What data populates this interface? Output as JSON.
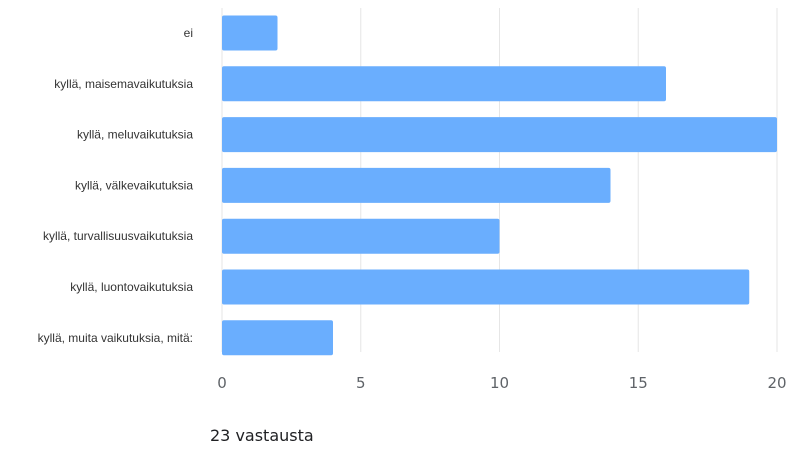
{
  "chart_data": {
    "type": "bar",
    "orientation": "horizontal",
    "categories": [
      "ei",
      "kyllä, maisemavaikutuksia",
      "kyllä, meluvaikutuksia",
      "kyllä, välkevaikutuksia",
      "kyllä, turvallisuusvaikutuksia",
      "kyllä, luontovaikutuksia",
      "kyllä, muita vaikutuksia, mitä:"
    ],
    "values": [
      2,
      16,
      20,
      14,
      10,
      19,
      4
    ],
    "xlim": [
      0,
      20
    ],
    "xticks": [
      0,
      5,
      10,
      15,
      20
    ],
    "grid": true,
    "bar_color": "#6aaefe"
  },
  "footer": {
    "responses": "23 vastausta"
  }
}
